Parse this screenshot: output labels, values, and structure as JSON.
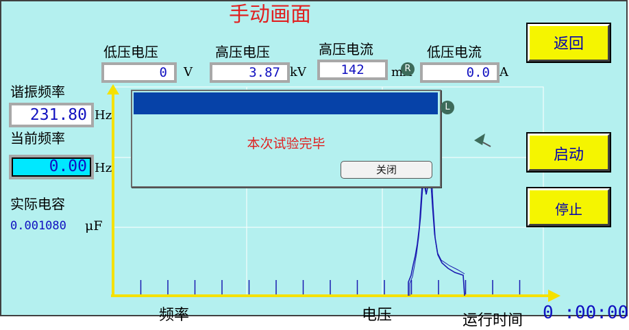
{
  "title": "手动画面",
  "readings": {
    "low_voltage": {
      "label": "低压电压",
      "value": "0",
      "unit": "V"
    },
    "high_voltage": {
      "label": "高压电压",
      "value": "3.87",
      "unit": "kV"
    },
    "high_current": {
      "label": "高压电流",
      "value": "142",
      "unit": "mA"
    },
    "low_current": {
      "label": "低压电流",
      "value": "0.0",
      "unit": "A"
    }
  },
  "resonance": {
    "label": "谐振频率",
    "value": "231.80",
    "unit": "Hz"
  },
  "current_freq": {
    "label": "当前频率",
    "value": "0.00",
    "unit": "Hz"
  },
  "capacitance": {
    "label": "实际电容",
    "value": "0.001080",
    "unit": "μF"
  },
  "buttons": {
    "back": "返回",
    "start": "启动",
    "stop": "停止"
  },
  "dialog": {
    "message": "本次试验完毕",
    "close": "关闭"
  },
  "markers": {
    "r": "R",
    "l": "L"
  },
  "axis": {
    "x_label": "频率",
    "y_label": "电压"
  },
  "run_time": {
    "label": "运行时间",
    "value": "0 :00:00"
  },
  "colors": {
    "background": "#b4f0ef",
    "title": "#e02020",
    "button": "#f5f500",
    "dialog_bar": "#0642a8",
    "axis": "#f5e100",
    "curve": "#1a1ab0",
    "current_freq_field": "#00e8ff"
  },
  "icons": {
    "cursor": "arrow-cursor-icon"
  }
}
